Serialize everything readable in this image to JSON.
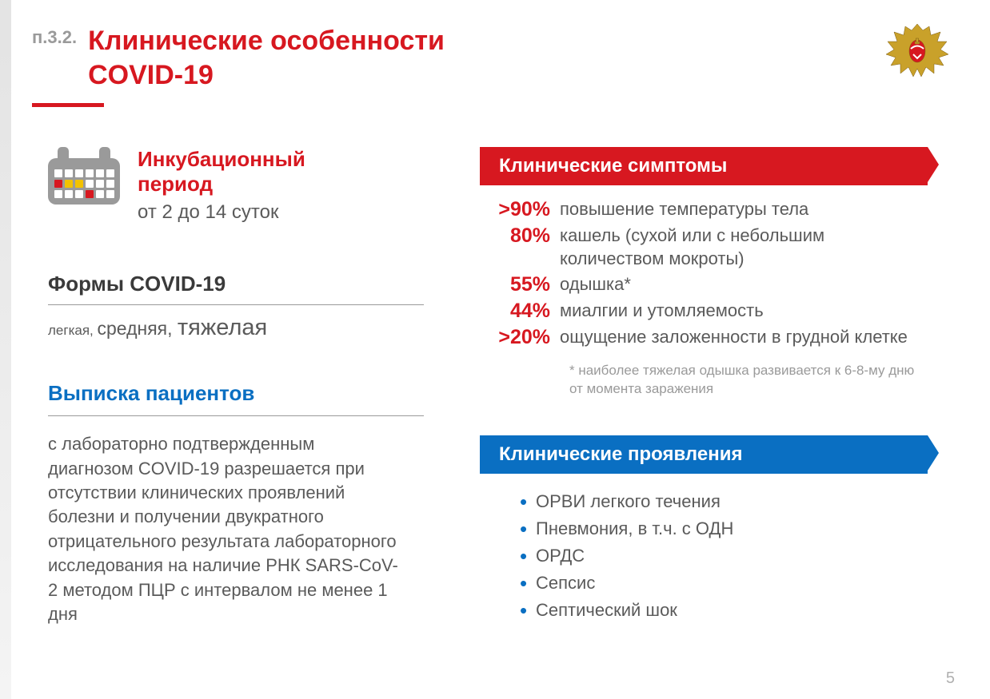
{
  "colors": {
    "red": "#d71820",
    "blue": "#0a6fc2",
    "gray_text": "#5a5a5a",
    "light_gray": "#9a9a9a",
    "bg": "#ffffff"
  },
  "header": {
    "section_number": "п.3.2.",
    "title_line1": "Клинические особенности",
    "title_line2": "COVID-19"
  },
  "incubation": {
    "title_line1": "Инкубационный",
    "title_line2": "период",
    "subtitle": "от 2 до 14 суток"
  },
  "forms": {
    "title": "Формы COVID-19",
    "items": [
      "легкая",
      "средняя",
      "тяжелая"
    ]
  },
  "discharge": {
    "title": "Выписка пациентов",
    "text": "с лабораторно подтвержденным диагнозом COVID-19 разрешается при отсутствии клинических проявлений болезни и получении двукратного отрицательного результата лабораторного исследования на наличие РНК SARS-CoV-2 методом ПЦР с интервалом не менее 1 дня"
  },
  "symptoms": {
    "banner": "Клинические симптомы",
    "rows": [
      {
        "pct": ">90%",
        "text": "повышение температуры тела"
      },
      {
        "pct": "80%",
        "text": "кашель (сухой или с небольшим количеством мокроты)"
      },
      {
        "pct": "55%",
        "text": "одышка*"
      },
      {
        "pct": "44%",
        "text": "миалгии и утомляемость"
      },
      {
        "pct": ">20%",
        "text": "ощущение заложенности в грудной клетке"
      }
    ],
    "footnote": "* наиболее тяжелая одышка развивается к 6-8-му дню от момента заражения"
  },
  "manifestations": {
    "banner": "Клинические проявления",
    "items": [
      "ОРВИ легкого течения",
      "Пневмония, в т.ч. с ОДН",
      "ОРДС",
      "Сепсис",
      "Септический шок"
    ]
  },
  "page_number": "5",
  "calendar_highlight": {
    "yellow_cells": [
      7,
      8
    ],
    "red_cells": [
      6,
      15
    ]
  }
}
